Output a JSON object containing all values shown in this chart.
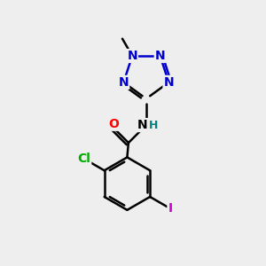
{
  "background_color": "#eeeeee",
  "bond_color": "#000000",
  "bond_width": 1.8,
  "tetrazole_N_color": "#0000cc",
  "O_color": "#ff0000",
  "Cl_color": "#00aa00",
  "I_color": "#cc00cc",
  "H_color": "#008080",
  "figsize": [
    3.0,
    3.0
  ],
  "dpi": 100,
  "xlim": [
    0,
    10
  ],
  "ylim": [
    0,
    10
  ]
}
